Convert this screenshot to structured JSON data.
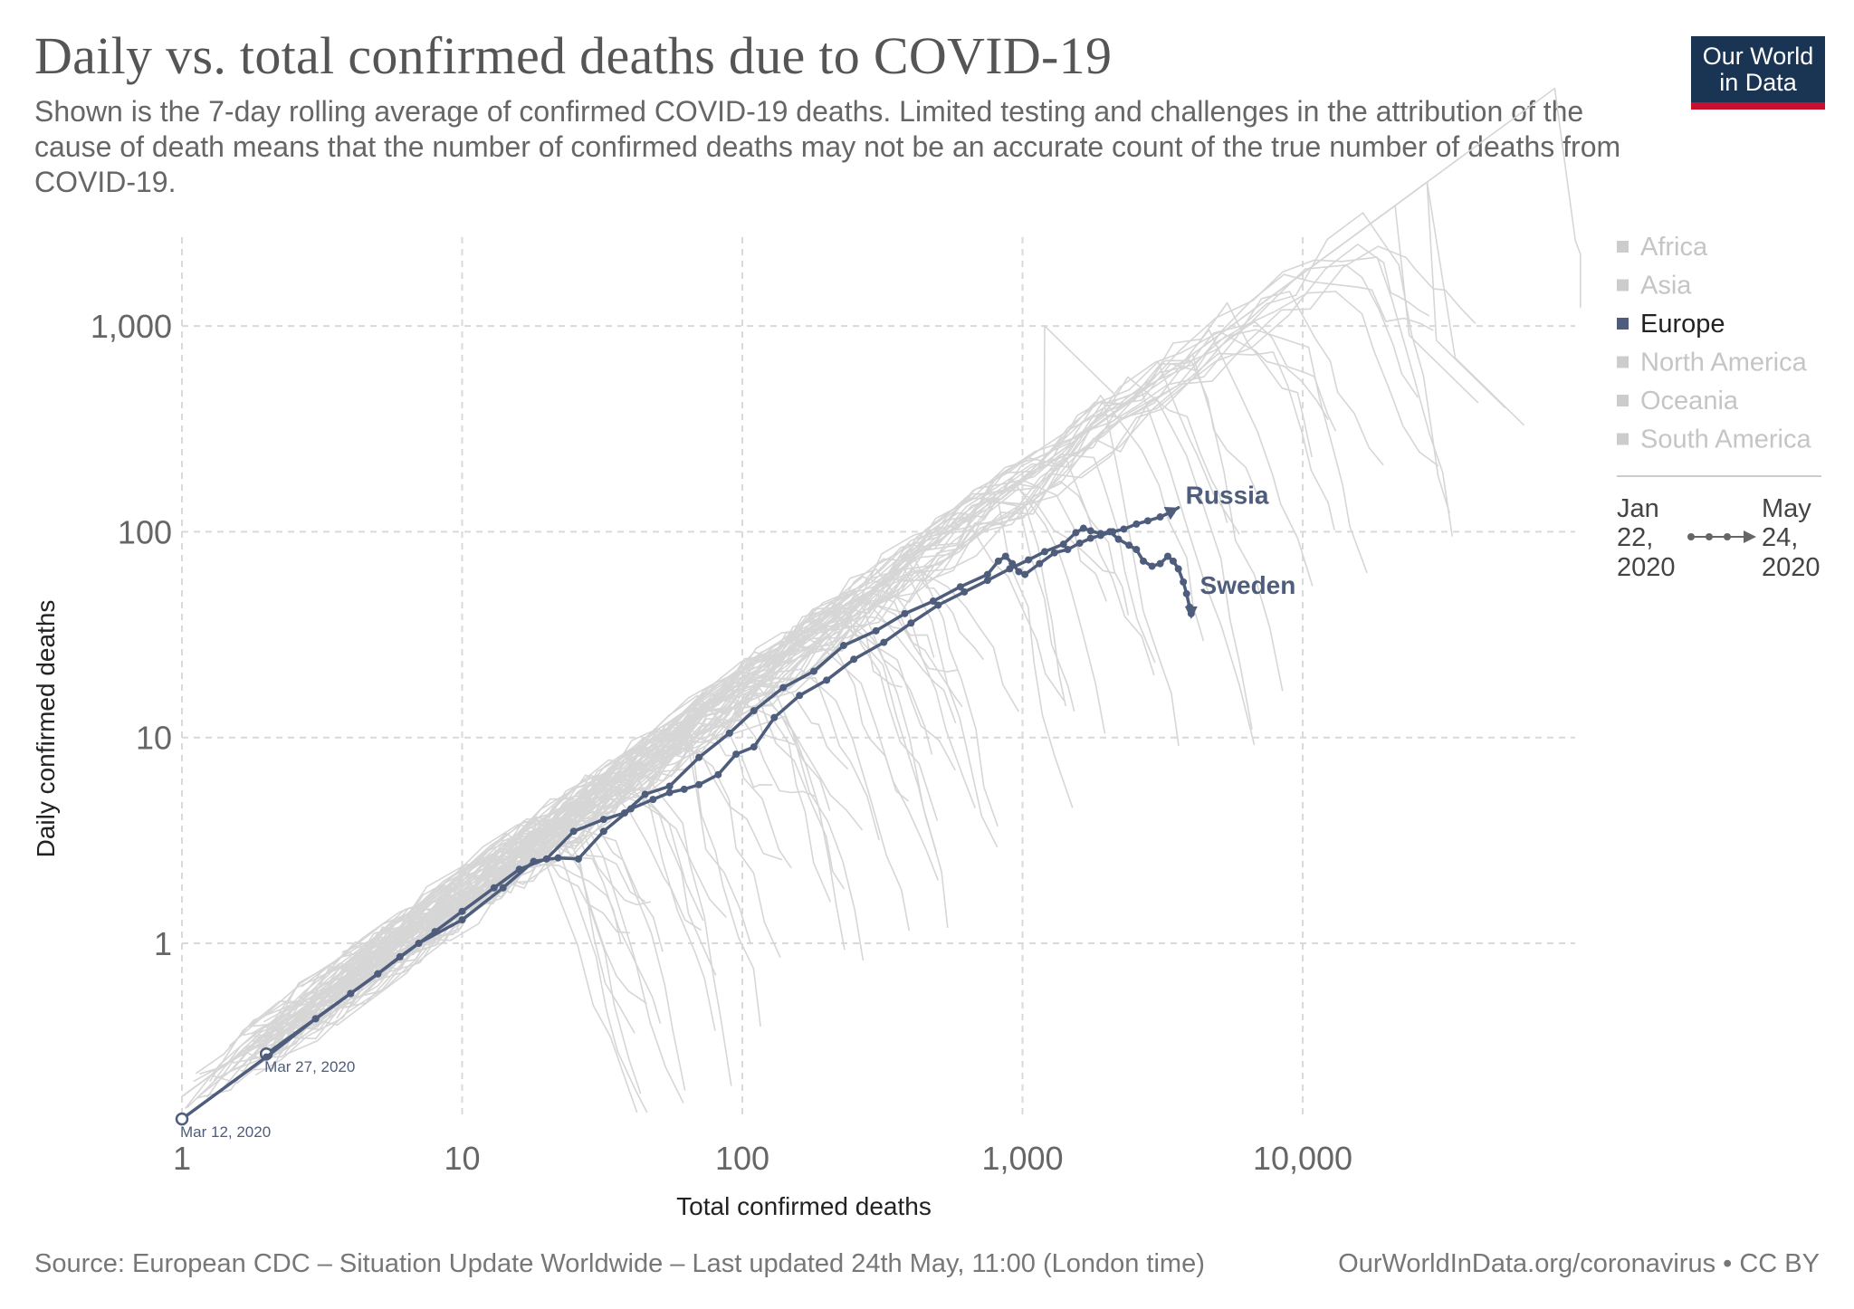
{
  "header": {
    "title": "Daily vs. total confirmed deaths due to COVID-19",
    "subtitle": "Shown is the 7-day rolling average of confirmed COVID-19 deaths. Limited testing and challenges in the attribution of the cause of death means that the number of confirmed deaths may not be an accurate count of the true number of deaths from COVID-19.",
    "logo_line1": "Our World",
    "logo_line2": "in Data"
  },
  "footer": {
    "source": "Source: European CDC – Situation Update Worldwide – Last updated 24th May, 11:00 (London time)",
    "link": "OurWorldInData.org/coronavirus • CC BY"
  },
  "colors": {
    "highlight": "#4e5d7c",
    "background_lines": "#d6d6d6",
    "grid": "#d9d9d9",
    "logo_bg": "#1a3454",
    "logo_accent": "#c8102e"
  },
  "chart_data": {
    "type": "line",
    "scale": "log-log",
    "xlabel": "Total confirmed deaths",
    "ylabel": "Daily confirmed deaths",
    "xlim": [
      1,
      100000
    ],
    "ylim": [
      0.15,
      2800
    ],
    "x_ticks": [
      {
        "value": 1,
        "label": "1"
      },
      {
        "value": 10,
        "label": "10"
      },
      {
        "value": 100,
        "label": "100"
      },
      {
        "value": 1000,
        "label": "1,000"
      },
      {
        "value": 10000,
        "label": "10,000"
      }
    ],
    "y_ticks": [
      {
        "value": 1,
        "label": "1"
      },
      {
        "value": 10,
        "label": "10"
      },
      {
        "value": 100,
        "label": "100"
      },
      {
        "value": 1000,
        "label": "1,000"
      }
    ],
    "grid": true,
    "legend": {
      "position": "right",
      "entries": [
        {
          "label": "Africa",
          "active": false
        },
        {
          "label": "Asia",
          "active": false
        },
        {
          "label": "Europe",
          "active": true
        },
        {
          "label": "North America",
          "active": false
        },
        {
          "label": "Oceania",
          "active": false
        },
        {
          "label": "South America",
          "active": false
        }
      ]
    },
    "time_range": {
      "start_line1": "Jan",
      "start_line2": "22,",
      "start_line3": "2020",
      "end_line1": "May",
      "end_line2": "24,",
      "end_line3": "2020"
    },
    "series": [
      {
        "name": "Russia",
        "start_label": "Mar 27, 2020",
        "points": [
          [
            2,
            0.29
          ],
          [
            3,
            0.43
          ],
          [
            4,
            0.57
          ],
          [
            5,
            0.71
          ],
          [
            6,
            0.86
          ],
          [
            8,
            1.14
          ],
          [
            10,
            1.43
          ],
          [
            13,
            1.86
          ],
          [
            16,
            2.29
          ],
          [
            20,
            2.57
          ],
          [
            25,
            3.5
          ],
          [
            32,
            4.0
          ],
          [
            38,
            4.3
          ],
          [
            45,
            5.3
          ],
          [
            55,
            5.8
          ],
          [
            70,
            8.0
          ],
          [
            90,
            10.5
          ],
          [
            110,
            13.5
          ],
          [
            140,
            17.5
          ],
          [
            180,
            21
          ],
          [
            230,
            28
          ],
          [
            300,
            33
          ],
          [
            380,
            40
          ],
          [
            480,
            46
          ],
          [
            600,
            54
          ],
          [
            750,
            62
          ],
          [
            820,
            72
          ],
          [
            870,
            76
          ],
          [
            920,
            70
          ],
          [
            970,
            64
          ],
          [
            1020,
            62
          ],
          [
            1150,
            70
          ],
          [
            1300,
            79
          ],
          [
            1450,
            82
          ],
          [
            1600,
            88
          ],
          [
            1750,
            93
          ],
          [
            1900,
            96
          ],
          [
            2100,
            100
          ],
          [
            2300,
            103
          ],
          [
            2550,
            109
          ],
          [
            2800,
            113
          ],
          [
            3100,
            118
          ],
          [
            3400,
            125
          ],
          [
            3600,
            131
          ]
        ]
      },
      {
        "name": "Sweden",
        "start_label": "Mar 12, 2020",
        "points": [
          [
            1,
            0.14
          ],
          [
            2,
            0.28
          ],
          [
            3,
            0.43
          ],
          [
            4,
            0.57
          ],
          [
            5,
            0.71
          ],
          [
            7,
            1.0
          ],
          [
            10,
            1.3
          ],
          [
            14,
            1.86
          ],
          [
            18,
            2.5
          ],
          [
            22,
            2.6
          ],
          [
            26,
            2.57
          ],
          [
            32,
            3.5
          ],
          [
            40,
            4.5
          ],
          [
            48,
            5.0
          ],
          [
            55,
            5.4
          ],
          [
            62,
            5.6
          ],
          [
            70,
            5.9
          ],
          [
            82,
            6.6
          ],
          [
            95,
            8.3
          ],
          [
            110,
            9.0
          ],
          [
            130,
            12.5
          ],
          [
            160,
            16
          ],
          [
            200,
            19
          ],
          [
            250,
            24
          ],
          [
            320,
            29
          ],
          [
            400,
            36
          ],
          [
            500,
            44
          ],
          [
            620,
            51
          ],
          [
            750,
            58
          ],
          [
            900,
            66
          ],
          [
            1050,
            73
          ],
          [
            1200,
            80
          ],
          [
            1400,
            87
          ],
          [
            1550,
            99
          ],
          [
            1650,
            104
          ],
          [
            1750,
            101
          ],
          [
            1900,
            98
          ],
          [
            2050,
            100
          ],
          [
            2200,
            92
          ],
          [
            2400,
            86
          ],
          [
            2550,
            82
          ],
          [
            2700,
            72
          ],
          [
            2900,
            68
          ],
          [
            3100,
            70
          ],
          [
            3300,
            76
          ],
          [
            3450,
            72
          ],
          [
            3600,
            66
          ],
          [
            3750,
            57
          ],
          [
            3850,
            50
          ],
          [
            3950,
            43
          ],
          [
            4000,
            40
          ]
        ]
      }
    ]
  }
}
